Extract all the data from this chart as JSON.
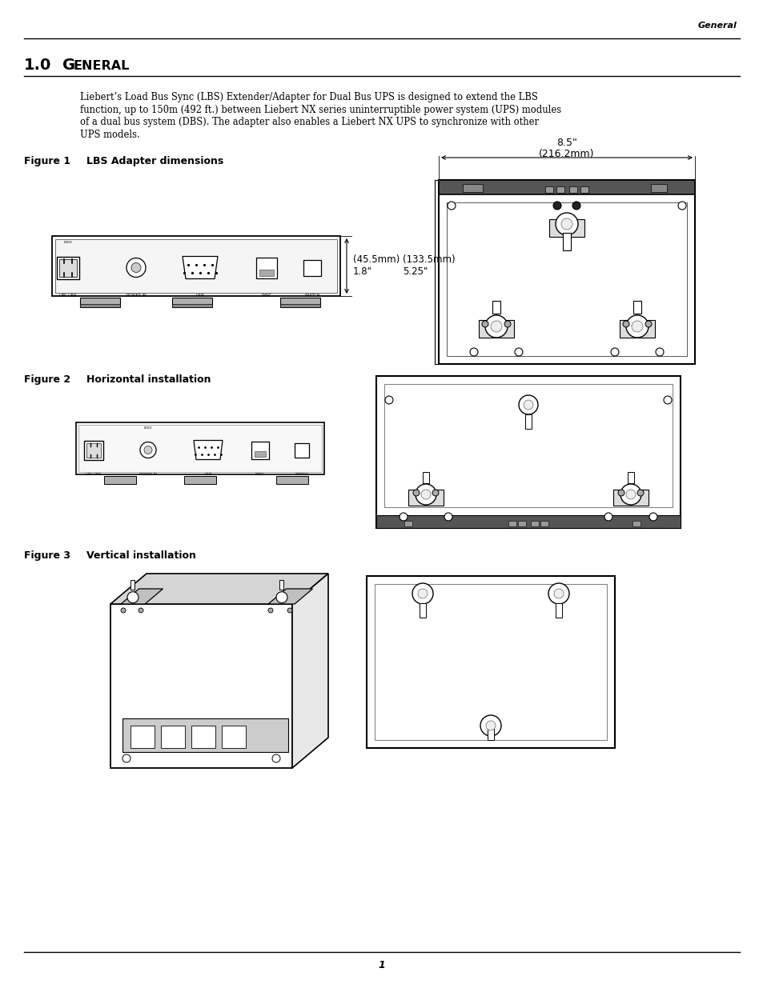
{
  "page_header_right": "General",
  "section_number": "1.0",
  "body_text_lines": [
    "Liebert’s Load Bus Sync (LBS) Extender/Adapter for Dual Bus UPS is designed to extend the LBS",
    "function, up to 150m (492 ft.) between Liebert NX series uninterruptible power system (UPS) modules",
    "of a dual bus system (DBS). The adapter also enables a Liebert NX UPS to synchronize with other",
    "UPS models."
  ],
  "fig1_label": "Figure 1",
  "fig1_title": "LBS Adapter dimensions",
  "fig2_label": "Figure 2",
  "fig2_title": "Horizontal installation",
  "fig3_label": "Figure 3",
  "fig3_title": "Vertical installation",
  "dim_85": "8.5\"",
  "dim_216": "(216.2mm)",
  "dim_18": "1.8\"",
  "dim_455": "(45.5mm)",
  "dim_525": "5.25\"",
  "dim_1335": "(133.5mm)",
  "page_number": "1",
  "bg_color": "#ffffff",
  "text_color": "#000000"
}
